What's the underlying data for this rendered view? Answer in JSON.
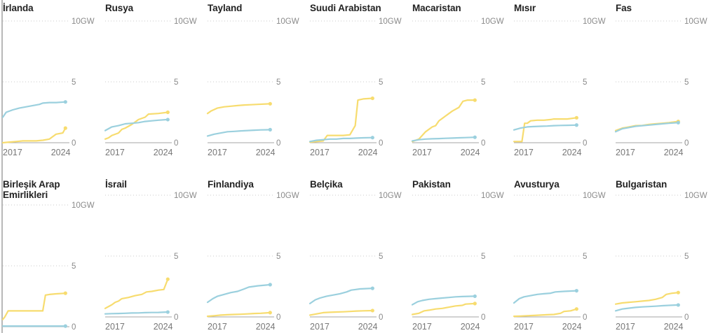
{
  "chart_data": {
    "type": "line",
    "title": "",
    "xlim": [
      2015,
      2025
    ],
    "ylim": [
      0,
      10
    ],
    "y_ticks": [
      {
        "value": 0,
        "label": "0"
      },
      {
        "value": 5,
        "label": "5"
      },
      {
        "value": 10,
        "label": "10GW"
      }
    ],
    "x_ticks": [
      {
        "value": 2017,
        "label": "2017"
      },
      {
        "value": 2024,
        "label": "2024"
      }
    ],
    "series_colors": {
      "blue": "#9bd0de",
      "yellow": "#f7dc6f"
    },
    "grid": "dotted-horizontal",
    "panels": [
      {
        "title": "İrlanda",
        "yellow": [
          [
            2015,
            0.0
          ],
          [
            2016,
            0.05
          ],
          [
            2017,
            0.1
          ],
          [
            2018,
            0.15
          ],
          [
            2019,
            0.15
          ],
          [
            2020,
            0.15
          ],
          [
            2021,
            0.2
          ],
          [
            2022,
            0.3
          ],
          [
            2023,
            0.7
          ],
          [
            2024,
            0.8
          ],
          [
            2024.4,
            1.2
          ]
        ],
        "blue": [
          [
            2015,
            2.1
          ],
          [
            2015.5,
            2.5
          ],
          [
            2016.5,
            2.7
          ],
          [
            2017.5,
            2.85
          ],
          [
            2018.5,
            2.95
          ],
          [
            2019.5,
            3.05
          ],
          [
            2020.5,
            3.15
          ],
          [
            2021,
            3.25
          ],
          [
            2022,
            3.3
          ],
          [
            2023,
            3.3
          ],
          [
            2024.4,
            3.35
          ]
        ]
      },
      {
        "title": "Rusya",
        "yellow": [
          [
            2015,
            0.3
          ],
          [
            2015.5,
            0.4
          ],
          [
            2016,
            0.6
          ],
          [
            2017,
            0.8
          ],
          [
            2017.5,
            1.1
          ],
          [
            2018,
            1.2
          ],
          [
            2019,
            1.5
          ],
          [
            2020,
            1.9
          ],
          [
            2021,
            2.1
          ],
          [
            2021.5,
            2.35
          ],
          [
            2023,
            2.4
          ],
          [
            2024.4,
            2.5
          ]
        ],
        "blue": [
          [
            2015,
            1.0
          ],
          [
            2016,
            1.3
          ],
          [
            2017,
            1.4
          ],
          [
            2018,
            1.55
          ],
          [
            2019,
            1.6
          ],
          [
            2020,
            1.65
          ],
          [
            2021,
            1.75
          ],
          [
            2022,
            1.8
          ],
          [
            2023,
            1.85
          ],
          [
            2024.4,
            1.9
          ]
        ]
      },
      {
        "title": "Tayland",
        "yellow": [
          [
            2015,
            2.4
          ],
          [
            2015.5,
            2.6
          ],
          [
            2016.5,
            2.85
          ],
          [
            2017.5,
            2.95
          ],
          [
            2018.5,
            3.0
          ],
          [
            2019.5,
            3.05
          ],
          [
            2020.5,
            3.1
          ],
          [
            2021.5,
            3.12
          ],
          [
            2022.5,
            3.15
          ],
          [
            2024.4,
            3.2
          ]
        ],
        "blue": [
          [
            2015,
            0.55
          ],
          [
            2016,
            0.7
          ],
          [
            2017,
            0.8
          ],
          [
            2018,
            0.9
          ],
          [
            2019,
            0.93
          ],
          [
            2020,
            0.97
          ],
          [
            2021,
            1.0
          ],
          [
            2022,
            1.03
          ],
          [
            2023,
            1.05
          ],
          [
            2024.4,
            1.07
          ]
        ]
      },
      {
        "title": "Suudi Arabistan",
        "yellow": [
          [
            2015,
            0.05
          ],
          [
            2016,
            0.1
          ],
          [
            2017,
            0.15
          ],
          [
            2017.6,
            0.6
          ],
          [
            2018,
            0.6
          ],
          [
            2019,
            0.6
          ],
          [
            2020,
            0.6
          ],
          [
            2021,
            0.65
          ],
          [
            2021.8,
            1.4
          ],
          [
            2022.2,
            3.5
          ],
          [
            2023,
            3.6
          ],
          [
            2024.4,
            3.65
          ]
        ],
        "blue": [
          [
            2015,
            0.1
          ],
          [
            2016,
            0.2
          ],
          [
            2017,
            0.25
          ],
          [
            2018,
            0.3
          ],
          [
            2019,
            0.3
          ],
          [
            2020,
            0.35
          ],
          [
            2021,
            0.35
          ],
          [
            2022,
            0.38
          ],
          [
            2023,
            0.4
          ],
          [
            2024.4,
            0.42
          ]
        ]
      },
      {
        "title": "Macaristan",
        "yellow": [
          [
            2015,
            0.1
          ],
          [
            2016,
            0.3
          ],
          [
            2017,
            0.9
          ],
          [
            2018,
            1.3
          ],
          [
            2018.5,
            1.4
          ],
          [
            2019,
            1.8
          ],
          [
            2020,
            2.2
          ],
          [
            2021,
            2.6
          ],
          [
            2022,
            2.9
          ],
          [
            2022.6,
            3.4
          ],
          [
            2023.3,
            3.5
          ],
          [
            2024.4,
            3.5
          ]
        ],
        "blue": [
          [
            2015,
            0.15
          ],
          [
            2016,
            0.25
          ],
          [
            2017,
            0.3
          ],
          [
            2018,
            0.32
          ],
          [
            2019,
            0.34
          ],
          [
            2020,
            0.36
          ],
          [
            2021,
            0.38
          ],
          [
            2022,
            0.4
          ],
          [
            2023,
            0.42
          ],
          [
            2024.4,
            0.45
          ]
        ]
      },
      {
        "title": "Mısır",
        "yellow": [
          [
            2015,
            0.1
          ],
          [
            2016.2,
            0.1
          ],
          [
            2016.6,
            1.6
          ],
          [
            2017,
            1.6
          ],
          [
            2017.5,
            1.8
          ],
          [
            2018.5,
            1.85
          ],
          [
            2019.5,
            1.85
          ],
          [
            2020.5,
            1.9
          ],
          [
            2021,
            1.95
          ],
          [
            2022,
            1.95
          ],
          [
            2023,
            1.95
          ],
          [
            2024.4,
            2.05
          ]
        ],
        "blue": [
          [
            2015,
            1.05
          ],
          [
            2016,
            1.2
          ],
          [
            2017,
            1.3
          ],
          [
            2018,
            1.33
          ],
          [
            2019,
            1.35
          ],
          [
            2020,
            1.37
          ],
          [
            2021,
            1.4
          ],
          [
            2022,
            1.42
          ],
          [
            2023,
            1.43
          ],
          [
            2024.4,
            1.45
          ]
        ]
      },
      {
        "title": "Fas",
        "yellow": [
          [
            2015,
            1.0
          ],
          [
            2016,
            1.2
          ],
          [
            2017,
            1.3
          ],
          [
            2018,
            1.4
          ],
          [
            2019,
            1.42
          ],
          [
            2020,
            1.5
          ],
          [
            2021,
            1.55
          ],
          [
            2022,
            1.6
          ],
          [
            2023,
            1.65
          ],
          [
            2024.4,
            1.75
          ]
        ],
        "blue": [
          [
            2015,
            0.9
          ],
          [
            2016,
            1.15
          ],
          [
            2017,
            1.25
          ],
          [
            2018,
            1.35
          ],
          [
            2019,
            1.4
          ],
          [
            2020,
            1.45
          ],
          [
            2021,
            1.5
          ],
          [
            2022,
            1.55
          ],
          [
            2023,
            1.6
          ],
          [
            2024.4,
            1.65
          ]
        ]
      },
      {
        "title": "Birleşik Arap Emirlikleri",
        "yellow": [
          [
            2015,
            0.6
          ],
          [
            2015.3,
            0.8
          ],
          [
            2015.8,
            1.3
          ],
          [
            2017,
            1.3
          ],
          [
            2018,
            1.3
          ],
          [
            2019,
            1.3
          ],
          [
            2020,
            1.3
          ],
          [
            2021,
            1.3
          ],
          [
            2021.4,
            2.6
          ],
          [
            2022,
            2.65
          ],
          [
            2023,
            2.7
          ],
          [
            2024.4,
            2.75
          ]
        ],
        "blue": [
          [
            2015,
            0.05
          ],
          [
            2017,
            0.05
          ],
          [
            2019,
            0.05
          ],
          [
            2021,
            0.05
          ],
          [
            2023,
            0.05
          ],
          [
            2024.4,
            0.05
          ]
        ]
      },
      {
        "title": "İsrail",
        "yellow": [
          [
            2015,
            0.7
          ],
          [
            2016,
            1.0
          ],
          [
            2016.5,
            1.2
          ],
          [
            2017,
            1.3
          ],
          [
            2017.5,
            1.5
          ],
          [
            2018.5,
            1.6
          ],
          [
            2019.5,
            1.75
          ],
          [
            2020.5,
            1.85
          ],
          [
            2021.2,
            2.05
          ],
          [
            2022,
            2.1
          ],
          [
            2023,
            2.2
          ],
          [
            2023.8,
            2.25
          ],
          [
            2024.4,
            3.1
          ]
        ],
        "blue": [
          [
            2015,
            0.25
          ],
          [
            2016,
            0.27
          ],
          [
            2017,
            0.28
          ],
          [
            2018,
            0.3
          ],
          [
            2019,
            0.32
          ],
          [
            2020,
            0.33
          ],
          [
            2021,
            0.35
          ],
          [
            2022,
            0.36
          ],
          [
            2023,
            0.37
          ],
          [
            2024.4,
            0.4
          ]
        ]
      },
      {
        "title": "Finlandiya",
        "yellow": [
          [
            2015,
            0.05
          ],
          [
            2016,
            0.1
          ],
          [
            2017,
            0.15
          ],
          [
            2018,
            0.18
          ],
          [
            2019,
            0.2
          ],
          [
            2020,
            0.22
          ],
          [
            2021,
            0.25
          ],
          [
            2022,
            0.28
          ],
          [
            2023,
            0.3
          ],
          [
            2024.4,
            0.35
          ]
        ],
        "blue": [
          [
            2015,
            1.2
          ],
          [
            2015.8,
            1.5
          ],
          [
            2016.5,
            1.7
          ],
          [
            2017.5,
            1.85
          ],
          [
            2018.5,
            2.0
          ],
          [
            2019.5,
            2.1
          ],
          [
            2020.5,
            2.3
          ],
          [
            2021.2,
            2.45
          ],
          [
            2022.5,
            2.55
          ],
          [
            2024.4,
            2.65
          ]
        ]
      },
      {
        "title": "Belçika",
        "yellow": [
          [
            2015,
            0.15
          ],
          [
            2016,
            0.25
          ],
          [
            2017,
            0.35
          ],
          [
            2018,
            0.38
          ],
          [
            2019,
            0.4
          ],
          [
            2020,
            0.42
          ],
          [
            2021,
            0.45
          ],
          [
            2022,
            0.48
          ],
          [
            2023,
            0.5
          ],
          [
            2024.4,
            0.52
          ]
        ],
        "blue": [
          [
            2015,
            1.1
          ],
          [
            2015.8,
            1.4
          ],
          [
            2016.5,
            1.55
          ],
          [
            2017.5,
            1.7
          ],
          [
            2018.5,
            1.8
          ],
          [
            2019.5,
            1.9
          ],
          [
            2020.5,
            2.05
          ],
          [
            2021.2,
            2.2
          ],
          [
            2022.5,
            2.3
          ],
          [
            2024.4,
            2.35
          ]
        ]
      },
      {
        "title": "Pakistan",
        "yellow": [
          [
            2015,
            0.2
          ],
          [
            2016,
            0.3
          ],
          [
            2016.8,
            0.5
          ],
          [
            2017.5,
            0.55
          ],
          [
            2018.5,
            0.65
          ],
          [
            2019.5,
            0.7
          ],
          [
            2020.5,
            0.8
          ],
          [
            2021.5,
            0.9
          ],
          [
            2022.5,
            0.95
          ],
          [
            2023,
            1.05
          ],
          [
            2024.4,
            1.1
          ]
        ],
        "blue": [
          [
            2015,
            1.0
          ],
          [
            2015.8,
            1.25
          ],
          [
            2016.5,
            1.35
          ],
          [
            2017.5,
            1.45
          ],
          [
            2018.5,
            1.5
          ],
          [
            2019.5,
            1.55
          ],
          [
            2020.5,
            1.6
          ],
          [
            2021.5,
            1.65
          ],
          [
            2022.5,
            1.67
          ],
          [
            2024.4,
            1.7
          ]
        ]
      },
      {
        "title": "Avusturya",
        "yellow": [
          [
            2015,
            0.05
          ],
          [
            2016,
            0.07
          ],
          [
            2017,
            0.1
          ],
          [
            2018,
            0.12
          ],
          [
            2019,
            0.15
          ],
          [
            2020,
            0.18
          ],
          [
            2021,
            0.2
          ],
          [
            2022,
            0.3
          ],
          [
            2022.5,
            0.45
          ],
          [
            2023.5,
            0.5
          ],
          [
            2024.4,
            0.65
          ]
        ],
        "blue": [
          [
            2015,
            1.15
          ],
          [
            2015.8,
            1.5
          ],
          [
            2016.5,
            1.65
          ],
          [
            2017.5,
            1.75
          ],
          [
            2018.5,
            1.85
          ],
          [
            2019.5,
            1.9
          ],
          [
            2020.5,
            1.95
          ],
          [
            2021.2,
            2.05
          ],
          [
            2022.5,
            2.1
          ],
          [
            2024.4,
            2.15
          ]
        ]
      },
      {
        "title": "Bulgaristan",
        "yellow": [
          [
            2015,
            1.05
          ],
          [
            2016,
            1.15
          ],
          [
            2017,
            1.2
          ],
          [
            2018,
            1.25
          ],
          [
            2019,
            1.3
          ],
          [
            2020,
            1.35
          ],
          [
            2021,
            1.45
          ],
          [
            2022,
            1.6
          ],
          [
            2022.6,
            1.85
          ],
          [
            2023.5,
            1.95
          ],
          [
            2024.4,
            2.0
          ]
        ],
        "blue": [
          [
            2015,
            0.5
          ],
          [
            2016,
            0.65
          ],
          [
            2017,
            0.72
          ],
          [
            2018,
            0.78
          ],
          [
            2019,
            0.82
          ],
          [
            2020,
            0.85
          ],
          [
            2021,
            0.88
          ],
          [
            2022,
            0.92
          ],
          [
            2023,
            0.95
          ],
          [
            2024.4,
            0.98
          ]
        ]
      }
    ]
  }
}
